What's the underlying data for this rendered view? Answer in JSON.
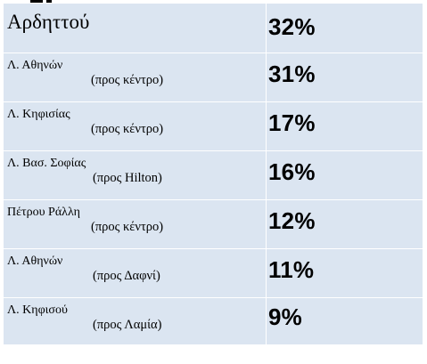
{
  "rows": [
    {
      "street": "Αρδηττού",
      "direction": "",
      "percent": "32%"
    },
    {
      "street": "Λ. Αθηνών",
      "direction": "(προς κέντρο)",
      "percent": "31%"
    },
    {
      "street": "Λ. Κηφισίας",
      "direction": "(προς κέντρο)",
      "percent": "17%"
    },
    {
      "street": "Λ. Βασ. Σοφίας",
      "direction": "(προς Hilton)",
      "percent": "16%"
    },
    {
      "street": "Πέτρου Ράλλη",
      "direction": "(προς κέντρο)",
      "percent": "12%"
    },
    {
      "street": "Λ. Αθηνών",
      "direction": "(προς Δαφνί)",
      "percent": "11%"
    },
    {
      "street": "Λ. Κηφισού",
      "direction": "(προς Λαμία)",
      "percent": "9%"
    }
  ],
  "colors": {
    "cell_background": "#dbe5f1",
    "grid_lines": "#ffffff",
    "text": "#000000"
  }
}
